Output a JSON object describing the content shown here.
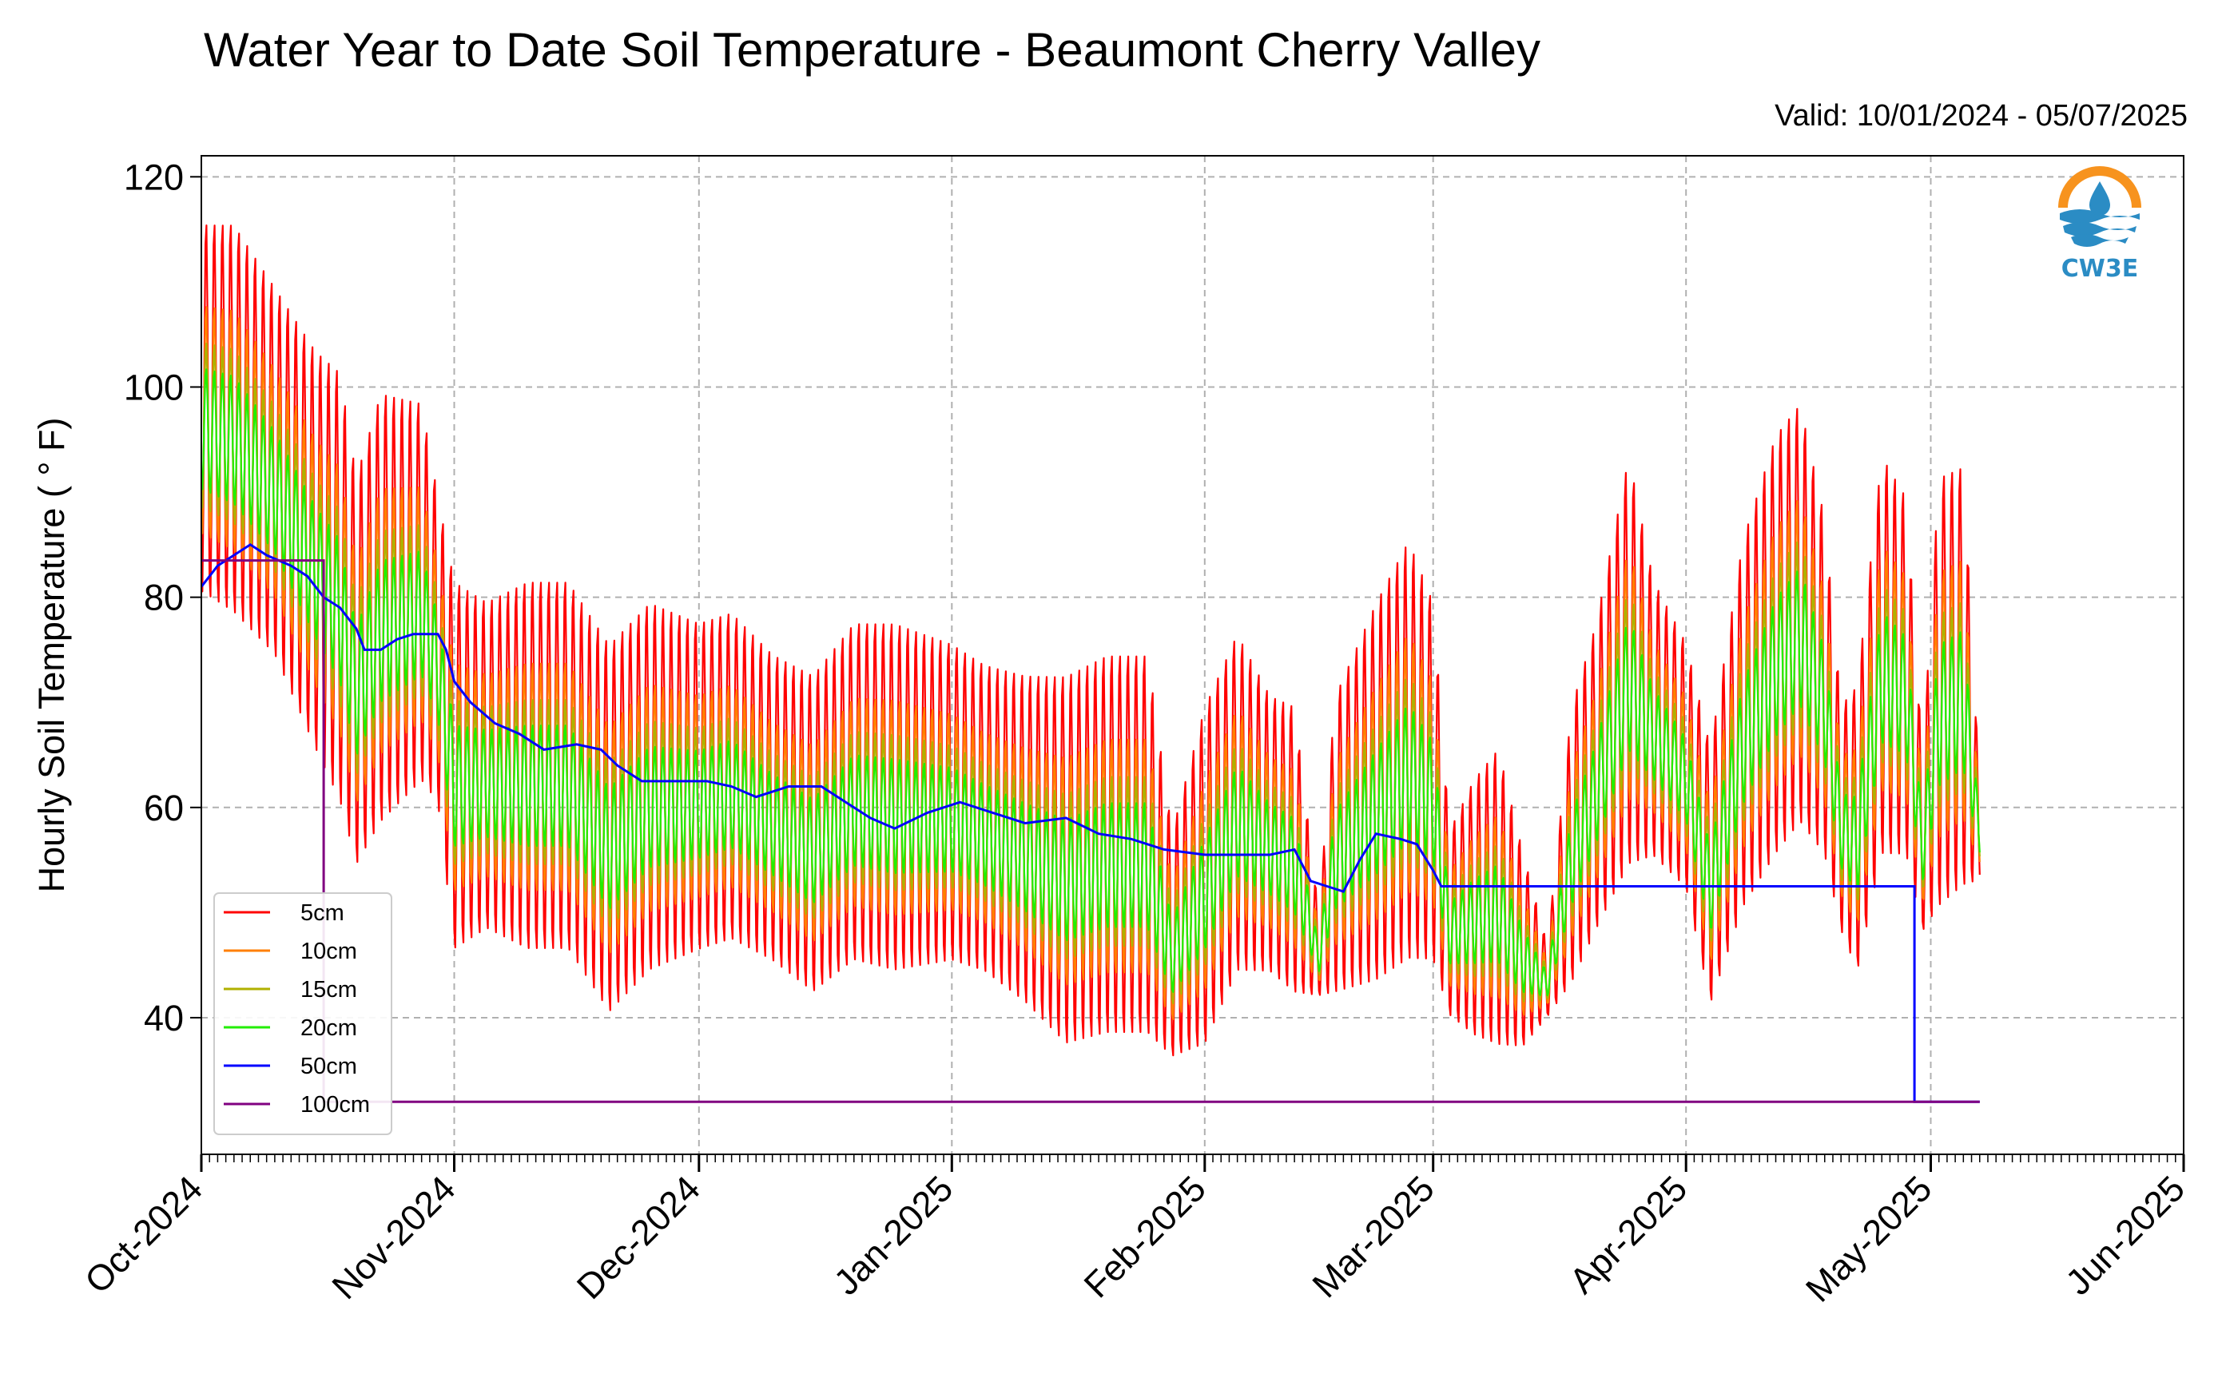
{
  "title": "Water Year to Date Soil Temperature - Beaumont Cherry Valley",
  "valid": "Valid: 10/01/2024 - 05/07/2025",
  "logo": {
    "icon": "cw3e-logo-icon",
    "text": "CW3E"
  },
  "chart_data": {
    "type": "line",
    "title": "Water Year to Date Soil Temperature - Beaumont Cherry Valley",
    "xlabel": "",
    "ylabel": "Hourly Soil Temperature ( ° F)",
    "xlim": [
      "2024-10-01",
      "2025-06-01"
    ],
    "ylim": [
      27,
      122
    ],
    "yticks": [
      40,
      60,
      80,
      100,
      120
    ],
    "xticks": [
      {
        "date": "2024-10-01",
        "label": "Oct-2024"
      },
      {
        "date": "2024-11-01",
        "label": "Nov-2024"
      },
      {
        "date": "2024-12-01",
        "label": "Dec-2024"
      },
      {
        "date": "2025-01-01",
        "label": "Jan-2025"
      },
      {
        "date": "2025-02-01",
        "label": "Feb-2025"
      },
      {
        "date": "2025-03-01",
        "label": "Mar-2025"
      },
      {
        "date": "2025-04-01",
        "label": "Apr-2025"
      },
      {
        "date": "2025-05-01",
        "label": "May-2025"
      },
      {
        "date": "2025-06-01",
        "label": "Jun-2025"
      }
    ],
    "grid": true,
    "legend_position": "lower-left",
    "daily_envelope": [
      [
        "2024-10-01",
        80,
        116
      ],
      [
        "2024-10-05",
        78,
        116
      ],
      [
        "2024-10-10",
        74,
        110
      ],
      [
        "2024-10-15",
        65,
        104
      ],
      [
        "2024-10-18",
        60,
        102
      ],
      [
        "2024-10-20",
        54,
        92
      ],
      [
        "2024-10-23",
        58,
        100
      ],
      [
        "2024-10-28",
        62,
        99
      ],
      [
        "2024-10-30",
        60,
        90
      ],
      [
        "2024-11-01",
        46,
        82
      ],
      [
        "2024-11-05",
        48,
        80
      ],
      [
        "2024-11-10",
        46,
        82
      ],
      [
        "2024-11-15",
        46,
        82
      ],
      [
        "2024-11-20",
        40,
        76
      ],
      [
        "2024-11-25",
        44,
        80
      ],
      [
        "2024-12-01",
        46,
        78
      ],
      [
        "2024-12-05",
        47,
        79
      ],
      [
        "2024-12-10",
        45,
        75
      ],
      [
        "2024-12-15",
        42,
        73
      ],
      [
        "2024-12-20",
        45,
        78
      ],
      [
        "2024-12-25",
        44,
        78
      ],
      [
        "2025-01-01",
        45,
        76
      ],
      [
        "2025-01-05",
        44,
        74
      ],
      [
        "2025-01-10",
        41,
        73
      ],
      [
        "2025-01-15",
        37,
        73
      ],
      [
        "2025-01-20",
        38,
        75
      ],
      [
        "2025-01-25",
        38,
        75
      ],
      [
        "2025-01-28",
        36,
        58
      ],
      [
        "2025-02-01",
        37,
        70
      ],
      [
        "2025-02-05",
        44,
        77
      ],
      [
        "2025-02-09",
        44,
        71
      ],
      [
        "2025-02-12",
        42,
        70
      ],
      [
        "2025-02-15",
        42,
        50
      ],
      [
        "2025-02-17",
        42,
        71
      ],
      [
        "2025-02-22",
        43,
        80
      ],
      [
        "2025-02-26",
        45,
        86
      ],
      [
        "2025-03-01",
        45,
        80
      ],
      [
        "2025-03-03",
        40,
        58
      ],
      [
        "2025-03-06",
        38,
        63
      ],
      [
        "2025-03-09",
        37,
        66
      ],
      [
        "2025-03-12",
        37,
        56
      ],
      [
        "2025-03-15",
        40,
        47
      ],
      [
        "2025-03-18",
        43,
        70
      ],
      [
        "2025-03-21",
        48,
        78
      ],
      [
        "2025-03-25",
        54,
        94
      ],
      [
        "2025-03-28",
        55,
        82
      ],
      [
        "2025-04-01",
        52,
        76
      ],
      [
        "2025-04-04",
        41,
        66
      ],
      [
        "2025-04-08",
        50,
        86
      ],
      [
        "2025-04-12",
        55,
        96
      ],
      [
        "2025-04-15",
        58,
        99
      ],
      [
        "2025-04-18",
        55,
        88
      ],
      [
        "2025-04-20",
        48,
        70
      ],
      [
        "2025-04-22",
        44,
        72
      ],
      [
        "2025-04-25",
        55,
        94
      ],
      [
        "2025-04-28",
        55,
        90
      ],
      [
        "2025-04-30",
        48,
        65
      ],
      [
        "2025-05-02",
        50,
        92
      ],
      [
        "2025-05-05",
        52,
        93
      ],
      [
        "2025-05-07",
        53,
        62
      ]
    ],
    "series": [
      {
        "name": "5cm",
        "color": "#ff0000",
        "depth_factor": 1.0
      },
      {
        "name": "10cm",
        "color": "#ff7f00",
        "depth_factor": 0.62
      },
      {
        "name": "15cm",
        "color": "#b0b000",
        "depth_factor": 0.45
      },
      {
        "name": "20cm",
        "color": "#22ee00",
        "depth_factor": 0.33
      },
      {
        "name": "50cm",
        "color": "#0000ff",
        "points": [
          [
            "2024-10-01",
            81
          ],
          [
            "2024-10-03",
            83
          ],
          [
            "2024-10-05",
            84
          ],
          [
            "2024-10-07",
            85
          ],
          [
            "2024-10-09",
            84
          ],
          [
            "2024-10-12",
            83
          ],
          [
            "2024-10-14",
            82
          ],
          [
            "2024-10-16",
            80
          ],
          [
            "2024-10-18",
            79
          ],
          [
            "2024-10-20",
            77
          ],
          [
            "2024-10-21",
            75
          ],
          [
            "2024-10-23",
            75
          ],
          [
            "2024-10-25",
            76
          ],
          [
            "2024-10-27",
            76.5
          ],
          [
            "2024-10-30",
            76.5
          ],
          [
            "2024-10-31",
            75
          ],
          [
            "2024-11-01",
            72
          ],
          [
            "2024-11-03",
            70
          ],
          [
            "2024-11-06",
            68
          ],
          [
            "2024-11-09",
            67
          ],
          [
            "2024-11-12",
            65.5
          ],
          [
            "2024-11-16",
            66
          ],
          [
            "2024-11-19",
            65.5
          ],
          [
            "2024-11-21",
            64
          ],
          [
            "2024-11-24",
            62.5
          ],
          [
            "2024-11-28",
            62.5
          ],
          [
            "2024-12-02",
            62.5
          ],
          [
            "2024-12-05",
            62
          ],
          [
            "2024-12-08",
            61
          ],
          [
            "2024-12-12",
            62
          ],
          [
            "2024-12-16",
            62
          ],
          [
            "2024-12-19",
            60.5
          ],
          [
            "2024-12-22",
            59
          ],
          [
            "2024-12-25",
            58
          ],
          [
            "2024-12-29",
            59.5
          ],
          [
            "2025-01-02",
            60.5
          ],
          [
            "2025-01-06",
            59.5
          ],
          [
            "2025-01-10",
            58.5
          ],
          [
            "2025-01-15",
            59
          ],
          [
            "2025-01-19",
            57.5
          ],
          [
            "2025-01-23",
            57
          ],
          [
            "2025-01-27",
            56
          ],
          [
            "2025-02-01",
            55.5
          ],
          [
            "2025-02-05",
            55.5
          ],
          [
            "2025-02-09",
            55.5
          ],
          [
            "2025-02-12",
            56
          ],
          [
            "2025-02-14",
            53
          ],
          [
            "2025-02-16",
            52.5
          ],
          [
            "2025-02-18",
            52
          ],
          [
            "2025-02-20",
            55
          ],
          [
            "2025-02-22",
            57.5
          ],
          [
            "2025-02-25",
            57
          ],
          [
            "2025-02-27",
            56.5
          ],
          [
            "2025-03-01",
            54
          ],
          [
            "2025-03-02",
            52.5
          ],
          [
            "2025-04-29",
            52.5
          ],
          [
            "2025-04-29",
            32
          ],
          [
            "2025-05-07",
            32
          ]
        ]
      },
      {
        "name": "100cm",
        "color": "#800080",
        "points": [
          [
            "2024-10-01",
            83.5
          ],
          [
            "2024-10-16",
            83.5
          ],
          [
            "2024-10-16",
            32
          ],
          [
            "2025-05-07",
            32
          ]
        ]
      }
    ]
  }
}
